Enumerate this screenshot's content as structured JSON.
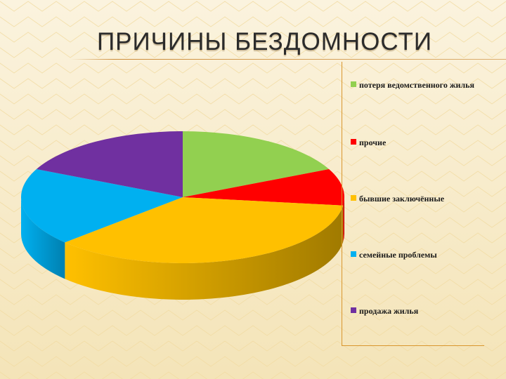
{
  "slide": {
    "title": "ПРИЧИНЫ БЕЗДОМНОСТИ"
  },
  "chart_data": {
    "type": "pie",
    "title": "",
    "style": "3d",
    "legend_position": "right",
    "categories": [
      "потеря ведомственного жилья",
      "прочие",
      "бывшие заключённые",
      "семейные проблемы",
      "продажа жилья"
    ],
    "values": [
      18,
      9,
      36,
      19,
      18
    ],
    "colors": [
      "#92d050",
      "#ff0000",
      "#ffc000",
      "#00b0f0",
      "#7030a0"
    ],
    "side_colors": [
      "#6a9a3a",
      "#b00000",
      "#a07a00",
      "#0080b0",
      "#4c1f70"
    ]
  }
}
